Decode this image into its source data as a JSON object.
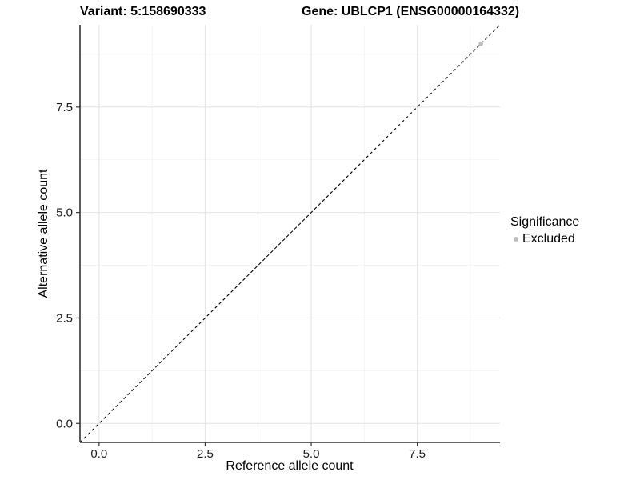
{
  "header": {
    "variant_title": "Variant: 5:158690333",
    "gene_title": "Gene: UBLCP1 (ENSG00000164332)"
  },
  "axes": {
    "x_label": "Reference allele count",
    "y_label": "Alternative allele count"
  },
  "legend": {
    "title": "Significance",
    "items": [
      {
        "label": "Excluded",
        "marker_color": "#bdbdbd"
      }
    ]
  },
  "chart_data": {
    "type": "scatter",
    "title_left": "Variant: 5:158690333",
    "title_right": "Gene: UBLCP1 (ENSG00000164332)",
    "xlabel": "Reference allele count",
    "ylabel": "Alternative allele count",
    "xlim": [
      -0.45,
      9.45
    ],
    "ylim": [
      -0.45,
      9.45
    ],
    "x_ticks": [
      0,
      2.5,
      5,
      7.5
    ],
    "x_tick_labels": [
      "0.0",
      "2.5",
      "5.0",
      "7.5"
    ],
    "y_ticks": [
      0,
      2.5,
      5,
      7.5
    ],
    "y_tick_labels": [
      "0.0",
      "2.5",
      "5.0",
      "7.5"
    ],
    "x_minor_ticks": [
      1.25,
      3.75,
      6.25,
      8.75
    ],
    "y_minor_ticks": [
      1.25,
      3.75,
      6.25,
      8.75
    ],
    "grid": "major+minor",
    "legend_position": "right",
    "series": [
      {
        "name": "Excluded",
        "marker": "circle",
        "color": "#bdbdbd",
        "points": [
          {
            "x": 9,
            "y": 9
          }
        ]
      }
    ],
    "reference_line": {
      "kind": "identity",
      "equation": "y = x",
      "style": "dashed",
      "color": "#000000",
      "x_start": -0.45,
      "y_start": -0.45,
      "x_end": 9.45,
      "y_end": 9.45
    }
  },
  "style": {
    "grid_major_color": "#e5e5e5",
    "grid_minor_color": "#f2f2f2",
    "axis_line_color": "#333333",
    "tick_mark_color": "#333333",
    "point_color": "#bdbdbd",
    "dashed_line_color": "#000000"
  }
}
